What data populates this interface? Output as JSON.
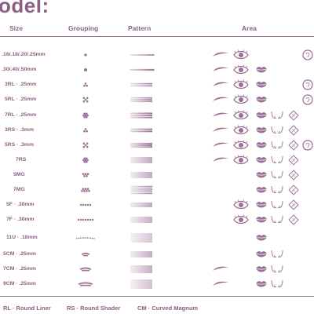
{
  "title": "odel:",
  "headers": {
    "size": "Size",
    "grouping": "Grouping",
    "pattern": "Pattern",
    "area": "Area"
  },
  "colors": {
    "accent": "#8a6184",
    "dot": "#9a6f94",
    "line": "#9b7395"
  },
  "rows": [
    {
      "size": "· .16/.18/.20/.25mm",
      "grouping": "single-small",
      "pattern": "pattern-1rl",
      "areas": [
        "eyebrow-icon",
        "eye-icon",
        "",
        "",
        "",
        "scalp-icon"
      ]
    },
    {
      "size": "· .30/.40/.50mm",
      "grouping": "single-large",
      "pattern": "pattern-1rl-large",
      "areas": [
        "eyebrow-icon",
        "eye-icon",
        "lips-icon",
        "",
        "",
        ""
      ]
    },
    {
      "size": "3RL · .25mm",
      "grouping": "triangle-3",
      "pattern": "pattern-3rl",
      "areas": [
        "eyebrow-icon",
        "eye-icon",
        "lips-icon",
        "",
        "",
        "scalp-icon"
      ]
    },
    {
      "size": "5RL · .25mm",
      "grouping": "cluster-5",
      "pattern": "pattern-5rl",
      "areas": [
        "eyebrow-icon",
        "eye-icon",
        "lips-icon",
        "",
        "",
        "scalp-icon"
      ]
    },
    {
      "size": "7RL · .25mm",
      "grouping": "flower-7",
      "pattern": "pattern-7rl",
      "areas": [
        "eyebrow-icon",
        "eye-icon",
        "lips-icon",
        "areola-icon",
        "scar-icon",
        ""
      ]
    },
    {
      "size": "3RS · .3mm",
      "grouping": "triangle-3",
      "pattern": "pattern-3rs",
      "areas": [
        "eyebrow-icon",
        "eye-icon",
        "lips-icon",
        "areola-icon",
        "scar-icon",
        ""
      ]
    },
    {
      "size": "5RS · .3mm",
      "grouping": "cluster-5",
      "pattern": "pattern-5rs",
      "areas": [
        "eyebrow-icon",
        "eye-icon",
        "lips-icon",
        "areola-icon",
        "scar-icon",
        "scalp-icon"
      ]
    },
    {
      "size": "7RS",
      "grouping": "flower-7",
      "pattern": "pattern-7rs",
      "areas": [
        "eyebrow-icon",
        "eye-icon",
        "lips-icon",
        "areola-icon",
        "scar-icon",
        ""
      ]
    },
    {
      "size": "5MG",
      "grouping": "magnum-5",
      "pattern": "pattern-5mg",
      "areas": [
        "",
        "",
        "lips-icon",
        "areola-icon",
        "scar-icon",
        ""
      ]
    },
    {
      "size": "7MG",
      "grouping": "magnum-7",
      "pattern": "pattern-7mg",
      "areas": [
        "",
        "",
        "lips-icon",
        "areola-icon",
        "scar-icon",
        ""
      ]
    },
    {
      "size": "5F · .30mm",
      "grouping": "flat-5",
      "pattern": "pattern-5f",
      "areas": [
        "",
        "eye-icon",
        "lips-icon",
        "areola-icon",
        "scar-icon",
        ""
      ]
    },
    {
      "size": "7F · .30mm",
      "grouping": "flat-7",
      "pattern": "pattern-7f",
      "areas": [
        "",
        "eye-icon",
        "lips-icon",
        "areola-icon",
        "scar-icon",
        ""
      ]
    },
    {
      "size": "11U · .18mm",
      "grouping": "u-blade",
      "pattern": "pattern-11u",
      "areas": [
        "",
        "",
        "lips-icon",
        "",
        "",
        ""
      ]
    },
    {
      "size": "5CM · .25mm",
      "grouping": "curved-5",
      "pattern": "pattern-5cm",
      "areas": [
        "",
        "",
        "lips-icon",
        "areola-icon",
        "",
        ""
      ]
    },
    {
      "size": "7CM · .25mm",
      "grouping": "curved-7",
      "pattern": "pattern-7cm",
      "areas": [
        "eyebrow-icon",
        "",
        "lips-icon",
        "areola-icon",
        "",
        ""
      ]
    },
    {
      "size": "9CM · .25mm",
      "grouping": "curved-9",
      "pattern": "pattern-9cm",
      "areas": [
        "eyebrow-icon",
        "",
        "lips-icon",
        "areola-icon",
        "",
        ""
      ]
    }
  ],
  "footer": {
    "rl": "RL · Round Liner",
    "rs": "RS · Round Shader",
    "cm": "CM · Curved Magnum"
  }
}
